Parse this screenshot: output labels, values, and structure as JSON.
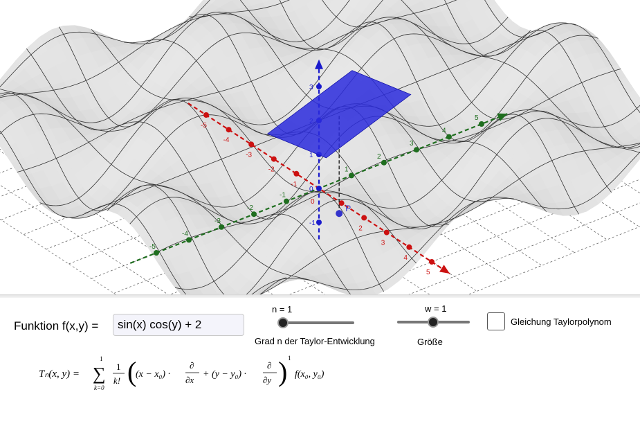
{
  "function_input": {
    "label": "Funktion f(x,y) =",
    "value": "sin(x) cos(y) + 2"
  },
  "slider_n": {
    "value_label": "n = 1",
    "caption": "Grad n der Taylor-Entwicklung",
    "value": 1
  },
  "slider_w": {
    "value_label": "w = 1",
    "caption": "Größe",
    "value": 1
  },
  "checkbox": {
    "label": "Gleichung Taylorpolynom",
    "checked": false
  },
  "formula": {
    "lhs": "Tₙ(x, y) =",
    "sum_top": "1",
    "sum_bottom": "k=0",
    "frac_num": "1",
    "frac_den": "k!",
    "term1": "(x − x₀) ·",
    "d_num": "∂",
    "d_den_x": "∂x",
    "d_den_y": "∂y",
    "plus": "+ (y − y₀) ·",
    "exponent": "1",
    "tail": "f(x₀, y₀)"
  },
  "axes": {
    "x_ticks": [
      "-5",
      "-4",
      "-3",
      "-2",
      "-1",
      "0",
      "1",
      "2",
      "3",
      "4",
      "5"
    ],
    "y_ticks": [
      "-5",
      "-4",
      "-3",
      "-2",
      "-1",
      "1",
      "2",
      "3",
      "4",
      "5"
    ],
    "z_ticks": [
      "-1",
      "0",
      "1",
      "2",
      "3"
    ],
    "x_color": "#cc1111",
    "y_color": "#1f6e1f",
    "z_color": "#1a1acc"
  },
  "point": {
    "label": "P",
    "color": "#3333cc"
  },
  "tangent_plane_color": "#2b2bdd"
}
